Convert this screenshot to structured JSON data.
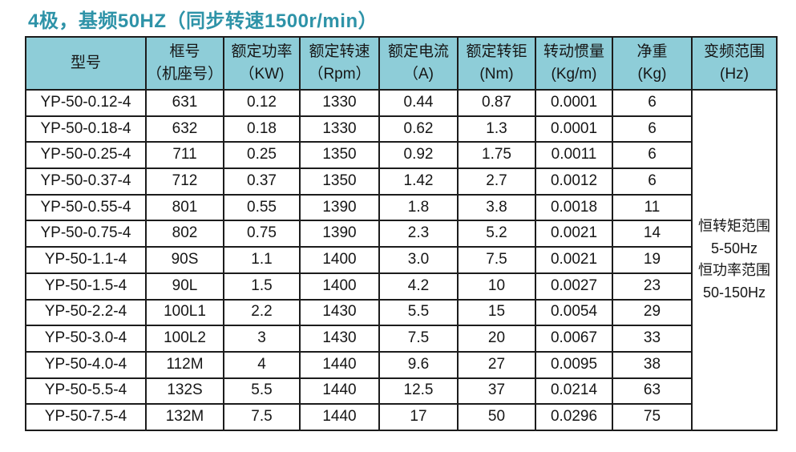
{
  "title": "4极，基频50HZ（同步转速1500r/min）",
  "colors": {
    "title_text": "#2e93a8",
    "header_background": "#8ecdd8",
    "border": "#1c1c1c",
    "body_text": "#161616"
  },
  "table": {
    "headers": [
      {
        "lines": [
          "型号"
        ]
      },
      {
        "lines": [
          "框号",
          "（机座号）"
        ]
      },
      {
        "lines": [
          "额定功率",
          "（KW)"
        ]
      },
      {
        "lines": [
          "额定转速",
          "（Rpm）"
        ]
      },
      {
        "lines": [
          "额定电流",
          "（A)"
        ]
      },
      {
        "lines": [
          "额定转钜",
          "(Nm)"
        ]
      },
      {
        "lines": [
          "转动惯量",
          "(Kg/m)"
        ]
      },
      {
        "lines": [
          "净重",
          "(Kg)"
        ]
      },
      {
        "lines": [
          "变频范围",
          "(Hz)"
        ]
      }
    ],
    "rows": [
      [
        "YP-50-0.12-4",
        "631",
        "0.12",
        "1330",
        "0.44",
        "0.87",
        "0.0001",
        "6"
      ],
      [
        "YP-50-0.18-4",
        "632",
        "0.18",
        "1330",
        "0.62",
        "1.3",
        "0.0001",
        "6"
      ],
      [
        "YP-50-0.25-4",
        "711",
        "0.25",
        "1350",
        "0.92",
        "1.75",
        "0.0011",
        "6"
      ],
      [
        "YP-50-0.37-4",
        "712",
        "0.37",
        "1350",
        "1.42",
        "2.7",
        "0.0012",
        "6"
      ],
      [
        "YP-50-0.55-4",
        "801",
        "0.55",
        "1390",
        "1.8",
        "3.8",
        "0.0018",
        "11"
      ],
      [
        "YP-50-0.75-4",
        "802",
        "0.75",
        "1390",
        "2.3",
        "5.2",
        "0.0021",
        "14"
      ],
      [
        "YP-50-1.1-4",
        "90S",
        "1.1",
        "1400",
        "3.0",
        "7.5",
        "0.0021",
        "19"
      ],
      [
        "YP-50-1.5-4",
        "90L",
        "1.5",
        "1400",
        "4.2",
        "10",
        "0.0027",
        "23"
      ],
      [
        "YP-50-2.2-4",
        "100L1",
        "2.2",
        "1430",
        "5.5",
        "15",
        "0.0054",
        "29"
      ],
      [
        "YP-50-3.0-4",
        "100L2",
        "3",
        "1430",
        "7.5",
        "20",
        "0.0067",
        "33"
      ],
      [
        "YP-50-4.0-4",
        "112M",
        "4",
        "1440",
        "9.6",
        "27",
        "0.0095",
        "38"
      ],
      [
        "YP-50-5.5-4",
        "132S",
        "5.5",
        "1440",
        "12.5",
        "37",
        "0.0214",
        "63"
      ],
      [
        "YP-50-7.5-4",
        "132M",
        "7.5",
        "1440",
        "17",
        "50",
        "0.0296",
        "75"
      ]
    ],
    "frequency_range": [
      "恒转矩范围",
      "5-50Hz",
      "恒功率范围",
      "50-150Hz"
    ]
  }
}
